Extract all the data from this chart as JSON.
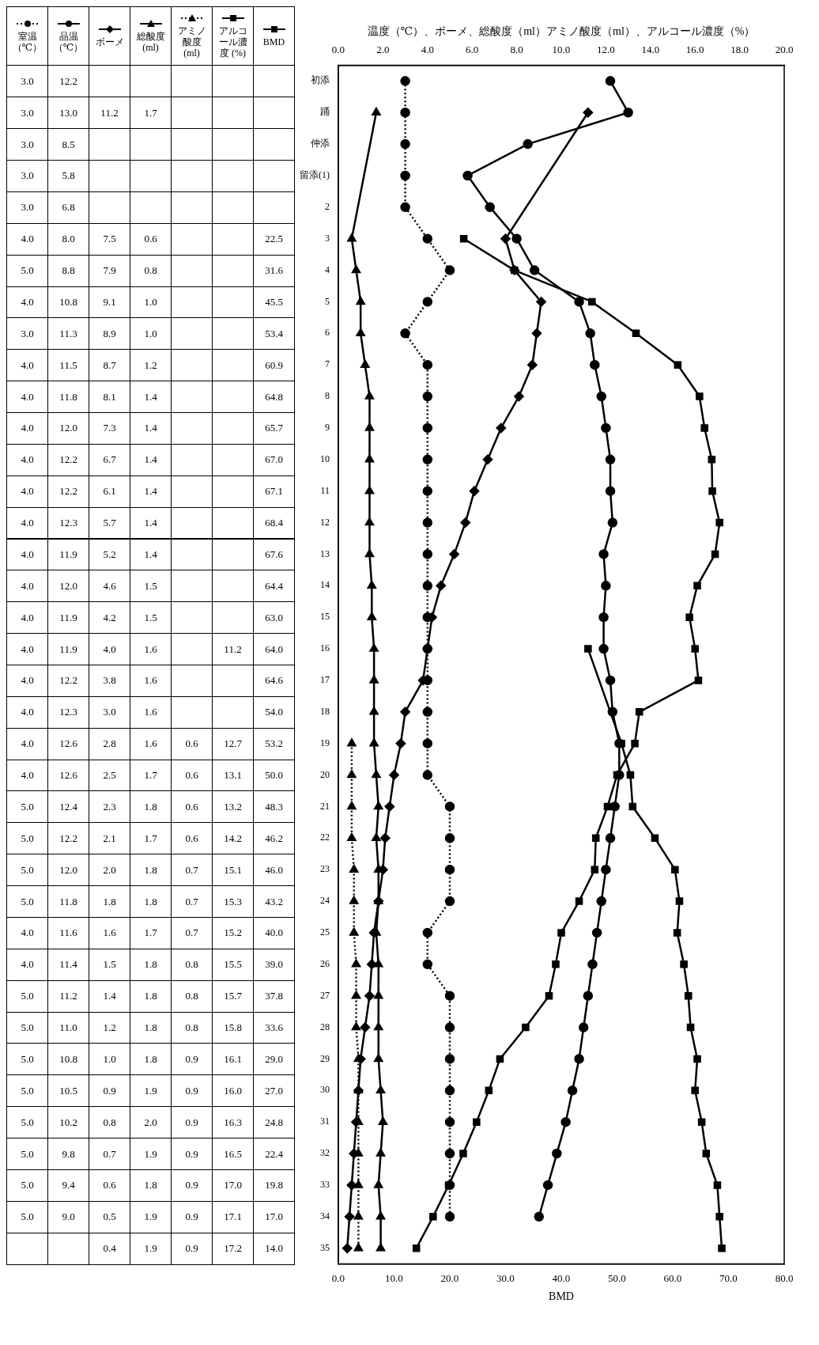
{
  "chart_data": {
    "type": "line",
    "orientation": "horizontal",
    "categories": [
      "初添",
      "踊",
      "仲添",
      "留添(1)",
      "2",
      "3",
      "4",
      "5",
      "6",
      "7",
      "8",
      "9",
      "10",
      "11",
      "12",
      "13",
      "14",
      "15",
      "16",
      "17",
      "18",
      "19",
      "20",
      "21",
      "22",
      "23",
      "24",
      "25",
      "26",
      "27",
      "28",
      "29",
      "30",
      "31",
      "32",
      "33",
      "34",
      "35"
    ],
    "series": [
      {
        "name": "室温（℃）",
        "color": "#000000",
        "axis": "x2",
        "marker": "circle",
        "line_style": "dotted",
        "values": [
          3.0,
          3.0,
          3.0,
          3.0,
          3.0,
          4.0,
          5.0,
          4.0,
          3.0,
          4.0,
          4.0,
          4.0,
          4.0,
          4.0,
          4.0,
          4.0,
          4.0,
          4.0,
          4.0,
          4.0,
          4.0,
          4.0,
          4.0,
          5.0,
          5.0,
          5.0,
          5.0,
          4.0,
          4.0,
          5.0,
          5.0,
          5.0,
          5.0,
          5.0,
          5.0,
          5.0,
          5.0,
          null
        ],
        "value_labels": [
          "3.0",
          "3.0",
          "3.0",
          "3.0",
          "3.0",
          "4.0",
          "5.0",
          "4.0",
          "3.0",
          "4.0",
          "4.0",
          "4.0",
          "4.0",
          "4.0",
          "4.0",
          "4.0",
          "4.0",
          "4.0",
          "4.0",
          "4.0",
          "4.0",
          "4.0",
          "4.0",
          "5.0",
          "5.0",
          "5.0",
          "5.0",
          "4.0",
          "4.0",
          "5.0",
          "5.0",
          "5.0",
          "5.0",
          "5.0",
          "5.0",
          "5.0",
          "5.0",
          null
        ]
      },
      {
        "name": "品温（℃）",
        "color": "#000000",
        "axis": "x2",
        "marker": "circle",
        "line_style": "solid",
        "values": [
          12.2,
          13.0,
          8.5,
          5.8,
          6.8,
          8.0,
          8.8,
          10.8,
          11.3,
          11.5,
          11.8,
          12.0,
          12.2,
          12.2,
          12.3,
          11.9,
          12.0,
          11.9,
          11.9,
          12.2,
          12.3,
          12.6,
          12.6,
          12.4,
          12.2,
          12.0,
          11.8,
          11.6,
          11.4,
          11.2,
          11.0,
          10.8,
          10.5,
          10.2,
          9.8,
          9.4,
          9.0,
          null
        ],
        "value_labels": [
          "12.2",
          "13.0",
          "8.5",
          "5.8",
          "6.8",
          "8.0",
          "8.8",
          "10.8",
          "11.3",
          "11.5",
          "11.8",
          "12.0",
          "12.2",
          "12.2",
          "12.3",
          "11.9",
          "12.0",
          "11.9",
          "11.9",
          "12.2",
          "12.3",
          "12.6",
          "12.6",
          "12.4",
          "12.2",
          "12.0",
          "11.8",
          "11.6",
          "11.4",
          "11.2",
          "11.0",
          "10.8",
          "10.5",
          "10.2",
          "9.8",
          "9.4",
          "9.0",
          null
        ]
      },
      {
        "name": "ボーメ",
        "color": "#000000",
        "axis": "x2",
        "marker": "diamond",
        "line_style": "solid",
        "values": [
          null,
          11.2,
          null,
          null,
          null,
          7.5,
          7.9,
          9.1,
          8.9,
          8.7,
          8.1,
          7.3,
          6.7,
          6.1,
          5.7,
          5.2,
          4.6,
          4.2,
          4.0,
          3.8,
          3.0,
          2.8,
          2.5,
          2.3,
          2.1,
          2.0,
          1.8,
          1.6,
          1.5,
          1.4,
          1.2,
          1.0,
          0.9,
          0.8,
          0.7,
          0.6,
          0.5,
          0.4
        ],
        "value_labels": [
          null,
          "11.2",
          null,
          null,
          null,
          "7.5",
          "7.9",
          "9.1",
          "8.9",
          "8.7",
          "8.1",
          "7.3",
          "6.7",
          "6.1",
          "5.7",
          "5.2",
          "4.6",
          "4.2",
          "4.0",
          "3.8",
          "3.0",
          "2.8",
          "2.5",
          "2.3",
          "2.1",
          "2.0",
          "1.8",
          "1.6",
          "1.5",
          "1.4",
          "1.2",
          "1.0",
          "0.9",
          "0.8",
          "0.7",
          "0.6",
          "0.5",
          "0.4"
        ]
      },
      {
        "name": "総酸度 (ml)",
        "color": "#000000",
        "axis": "x2",
        "marker": "triangle",
        "line_style": "solid",
        "values": [
          null,
          1.7,
          null,
          null,
          null,
          0.6,
          0.8,
          1.0,
          1.0,
          1.2,
          1.4,
          1.4,
          1.4,
          1.4,
          1.4,
          1.4,
          1.5,
          1.5,
          1.6,
          1.6,
          1.6,
          1.6,
          1.7,
          1.8,
          1.7,
          1.8,
          1.8,
          1.7,
          1.8,
          1.8,
          1.8,
          1.8,
          1.9,
          2.0,
          1.9,
          1.8,
          1.9,
          1.9
        ],
        "value_labels": [
          null,
          "1.7",
          null,
          null,
          null,
          "0.6",
          "0.8",
          "1.0",
          "1.0",
          "1.2",
          "1.4",
          "1.4",
          "1.4",
          "1.4",
          "1.4",
          "1.4",
          "1.5",
          "1.5",
          "1.6",
          "1.6",
          "1.6",
          "1.6",
          "1.7",
          "1.8",
          "1.7",
          "1.8",
          "1.8",
          "1.7",
          "1.8",
          "1.8",
          "1.8",
          "1.8",
          "1.9",
          "2.0",
          "1.9",
          "1.8",
          "1.9",
          "1.9"
        ]
      },
      {
        "name": "アミノ酸度 (ml)",
        "color": "#000000",
        "axis": "x2",
        "marker": "triangle",
        "line_style": "dotted",
        "values": [
          null,
          null,
          null,
          null,
          null,
          null,
          null,
          null,
          null,
          null,
          null,
          null,
          null,
          null,
          null,
          null,
          null,
          null,
          null,
          null,
          null,
          0.6,
          0.6,
          0.6,
          0.6,
          0.7,
          0.7,
          0.7,
          0.8,
          0.8,
          0.8,
          0.9,
          0.9,
          0.9,
          0.9,
          0.9,
          0.9,
          0.9
        ],
        "value_labels": [
          null,
          null,
          null,
          null,
          null,
          null,
          null,
          null,
          null,
          null,
          null,
          null,
          null,
          null,
          null,
          null,
          null,
          null,
          null,
          null,
          null,
          "0.6",
          "0.6",
          "0.6",
          "0.6",
          "0.7",
          "0.7",
          "0.7",
          "0.8",
          "0.8",
          "0.8",
          "0.9",
          "0.9",
          "0.9",
          "0.9",
          "0.9",
          "0.9",
          "0.9"
        ]
      },
      {
        "name": "アルコール濃度 (%)",
        "color": "#000000",
        "axis": "x2",
        "marker": "square",
        "line_style": "solid",
        "values": [
          null,
          null,
          null,
          null,
          null,
          null,
          null,
          null,
          null,
          null,
          null,
          null,
          null,
          null,
          null,
          null,
          null,
          null,
          11.2,
          null,
          null,
          12.7,
          13.1,
          13.2,
          14.2,
          15.1,
          15.3,
          15.2,
          15.5,
          15.7,
          15.8,
          16.1,
          16.0,
          16.3,
          16.5,
          17.0,
          17.1,
          17.2
        ],
        "value_labels": [
          null,
          null,
          null,
          null,
          null,
          null,
          null,
          null,
          null,
          null,
          null,
          null,
          null,
          null,
          null,
          null,
          null,
          null,
          "11.2",
          null,
          null,
          "12.7",
          "13.1",
          "13.2",
          "14.2",
          "15.1",
          "15.3",
          "15.2",
          "15.5",
          "15.7",
          "15.8",
          "16.1",
          "16.0",
          "16.3",
          "16.5",
          "17.0",
          "17.1",
          "17.2"
        ]
      },
      {
        "name": "BMD",
        "color": "#000000",
        "marker": "square",
        "line_style": "solid",
        "values": [
          null,
          null,
          null,
          null,
          null,
          22.5,
          31.6,
          45.5,
          53.4,
          60.9,
          64.8,
          65.7,
          67.0,
          67.1,
          68.4,
          67.6,
          64.4,
          63.0,
          64.0,
          64.6,
          54.0,
          53.2,
          50.0,
          48.3,
          46.2,
          46.0,
          43.2,
          40.0,
          39.0,
          37.8,
          33.6,
          29.0,
          27.0,
          24.8,
          22.4,
          19.8,
          17.0,
          14.0
        ],
        "value_labels": [
          null,
          null,
          null,
          null,
          null,
          "22.5",
          "31.6",
          "45.5",
          "53.4",
          "60.9",
          "64.8",
          "65.7",
          "67.0",
          "67.1",
          "68.4",
          "67.6",
          "64.4",
          "63.0",
          "64.0",
          "64.6",
          "54.0",
          "53.2",
          "50.0",
          "48.3",
          "46.2",
          "46.0",
          "43.2",
          "40.0",
          "39.0",
          "37.8",
          "33.6",
          "29.0",
          "27.0",
          "24.8",
          "22.4",
          "19.8",
          "17.0",
          "14.0"
        ]
      }
    ],
    "xlabel": "BMD",
    "xlim": [
      0,
      80
    ],
    "xticks": [
      {
        "value": 0,
        "label": "0.0"
      },
      {
        "value": 10,
        "label": "10.0"
      },
      {
        "value": 20,
        "label": "20.0"
      },
      {
        "value": 30,
        "label": "30.0"
      },
      {
        "value": 40,
        "label": "40.0"
      },
      {
        "value": 50,
        "label": "50.0"
      },
      {
        "value": 60,
        "label": "60.0"
      },
      {
        "value": 70,
        "label": "70.0"
      },
      {
        "value": 80,
        "label": "80.0"
      }
    ],
    "x2label": "温度（℃）、ボーメ、総酸度（ml）アミノ酸度（ml）、アルコール濃度（%）",
    "x2lim": [
      0,
      20
    ],
    "x2ticks": [
      {
        "value": 0,
        "label": "0.0"
      },
      {
        "value": 2,
        "label": "2.0"
      },
      {
        "value": 4,
        "label": "4.0"
      },
      {
        "value": 6,
        "label": "6.0"
      },
      {
        "value": 8,
        "label": "8.0"
      },
      {
        "value": 10,
        "label": "10.0"
      },
      {
        "value": 12,
        "label": "12.0"
      },
      {
        "value": 14,
        "label": "14.0"
      },
      {
        "value": 16,
        "label": "16.0"
      },
      {
        "value": 18,
        "label": "18.0"
      },
      {
        "value": 20,
        "label": "20.0"
      }
    ],
    "grid": false,
    "legend": "left"
  }
}
